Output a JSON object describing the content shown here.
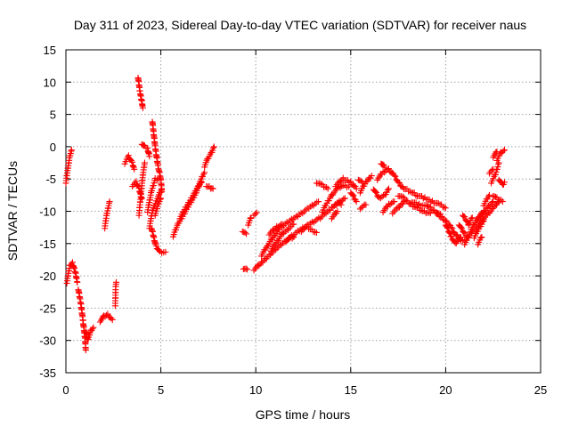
{
  "chart_data": {
    "type": "scatter",
    "title": "Day 311 of 2023, Sidereal Day-to-day VTEC variation (SDTVAR) for receiver naus",
    "xlabel": "GPS time / hours",
    "ylabel": "SDTVAR / TECUs",
    "xlim": [
      0,
      25
    ],
    "ylim": [
      -35,
      15
    ],
    "xticks": [
      0,
      5,
      10,
      15,
      20,
      25
    ],
    "yticks": [
      15,
      10,
      5,
      0,
      -5,
      -10,
      -15,
      -20,
      -25,
      -30,
      -35
    ],
    "grid": true,
    "marker": "+",
    "color": "#ff0000",
    "segments": [
      [
        [
          0.0,
          -5.5
        ],
        [
          0.1,
          -3.5
        ],
        [
          0.2,
          -1.5
        ],
        [
          0.3,
          -0.5
        ]
      ],
      [
        [
          0.05,
          -21
        ],
        [
          0.2,
          -18.5
        ],
        [
          0.35,
          -18
        ],
        [
          0.5,
          -19.5
        ],
        [
          0.6,
          -21
        ]
      ],
      [
        [
          0.65,
          -22
        ],
        [
          0.8,
          -24.5
        ],
        [
          0.9,
          -27
        ],
        [
          1.0,
          -29.5
        ],
        [
          1.05,
          -31.5
        ]
      ],
      [
        [
          1.05,
          -28.5
        ],
        [
          1.15,
          -30
        ],
        [
          1.3,
          -28.5
        ],
        [
          1.45,
          -28
        ]
      ],
      [
        [
          1.8,
          -27
        ],
        [
          2.0,
          -26.3
        ],
        [
          2.2,
          -26
        ],
        [
          2.45,
          -26.8
        ]
      ],
      [
        [
          2.6,
          -24.5
        ],
        [
          2.62,
          -21.8
        ],
        [
          2.65,
          -21
        ]
      ],
      [
        [
          2.05,
          -12.5
        ],
        [
          2.15,
          -10.5
        ],
        [
          2.3,
          -8.5
        ]
      ],
      [
        [
          3.1,
          -2.5
        ],
        [
          3.3,
          -1.5
        ],
        [
          3.5,
          -2.5
        ],
        [
          3.6,
          -3.5
        ]
      ],
      [
        [
          3.5,
          -6
        ],
        [
          3.7,
          -5.5
        ],
        [
          3.85,
          -6.5
        ],
        [
          4.0,
          -8
        ]
      ],
      [
        [
          3.8,
          10.8
        ],
        [
          3.9,
          8.5
        ],
        [
          4.0,
          7
        ],
        [
          4.05,
          6
        ]
      ],
      [
        [
          3.85,
          -10.5
        ],
        [
          3.95,
          -7.5
        ],
        [
          4.05,
          -4.5
        ],
        [
          4.15,
          -2.5
        ]
      ],
      [
        [
          4.0,
          0.5
        ],
        [
          4.15,
          0
        ],
        [
          4.3,
          -0.3
        ],
        [
          4.4,
          -1.5
        ]
      ],
      [
        [
          4.55,
          4
        ],
        [
          4.7,
          0
        ],
        [
          4.85,
          -3
        ],
        [
          5.0,
          -5
        ],
        [
          5.05,
          -7
        ]
      ],
      [
        [
          4.3,
          -10
        ],
        [
          4.5,
          -7
        ],
        [
          4.7,
          -5
        ],
        [
          4.9,
          -5
        ]
      ],
      [
        [
          4.4,
          -12.5
        ],
        [
          4.55,
          -10
        ],
        [
          4.75,
          -8.5
        ],
        [
          4.9,
          -7.5
        ],
        [
          5.05,
          -6.5
        ]
      ],
      [
        [
          4.5,
          -12.5
        ],
        [
          4.75,
          -15.5
        ],
        [
          4.95,
          -16.3
        ],
        [
          5.25,
          -16.3
        ]
      ],
      [
        [
          4.7,
          -10.5
        ],
        [
          4.85,
          -9
        ],
        [
          5.0,
          -8
        ]
      ],
      [
        [
          5.65,
          -13.8
        ],
        [
          5.9,
          -12
        ],
        [
          6.2,
          -10.5
        ],
        [
          6.5,
          -9
        ],
        [
          6.8,
          -7.5
        ],
        [
          7.0,
          -6
        ],
        [
          7.2,
          -4.5
        ],
        [
          7.3,
          -4
        ]
      ],
      [
        [
          6.0,
          -11
        ],
        [
          6.3,
          -9.5
        ],
        [
          6.6,
          -8
        ],
        [
          6.9,
          -6.5
        ],
        [
          7.15,
          -5.5
        ]
      ],
      [
        [
          7.3,
          -3
        ],
        [
          7.45,
          -2
        ],
        [
          7.65,
          -1
        ],
        [
          7.8,
          0
        ]
      ],
      [
        [
          7.4,
          -6
        ],
        [
          7.55,
          -6.3
        ],
        [
          7.75,
          -6.5
        ]
      ],
      [
        [
          9.3,
          -13
        ],
        [
          9.5,
          -13.5
        ]
      ],
      [
        [
          9.35,
          -18.8
        ],
        [
          9.55,
          -19
        ]
      ],
      [
        [
          9.6,
          -12
        ],
        [
          9.75,
          -11
        ]
      ],
      [
        [
          9.9,
          -10.5
        ],
        [
          10.05,
          -10.2
        ]
      ],
      [
        [
          9.9,
          -19
        ],
        [
          10.3,
          -18
        ],
        [
          10.7,
          -16.8
        ],
        [
          11.2,
          -15.5
        ],
        [
          11.8,
          -14
        ],
        [
          12.3,
          -13
        ],
        [
          12.8,
          -12
        ],
        [
          13.4,
          -11
        ],
        [
          14.0,
          -9.5
        ],
        [
          14.4,
          -8.5
        ],
        [
          14.7,
          -8
        ]
      ],
      [
        [
          10.3,
          -16.8
        ],
        [
          10.8,
          -14.5
        ],
        [
          11.3,
          -12.5
        ],
        [
          11.8,
          -11.5
        ],
        [
          12.3,
          -10.5
        ],
        [
          12.8,
          -9.5
        ],
        [
          13.3,
          -8.5
        ]
      ],
      [
        [
          10.7,
          -13.5
        ],
        [
          11.1,
          -12.5
        ],
        [
          11.4,
          -12
        ]
      ],
      [
        [
          10.8,
          -16
        ],
        [
          11.4,
          -13.5
        ],
        [
          12.0,
          -12
        ]
      ],
      [
        [
          11.6,
          -14.5
        ],
        [
          12.0,
          -14
        ]
      ],
      [
        [
          12.4,
          -13
        ],
        [
          12.7,
          -12.5
        ],
        [
          13.2,
          -13.3
        ]
      ],
      [
        [
          13.5,
          -10
        ],
        [
          13.8,
          -8.5
        ],
        [
          14.0,
          -7.5
        ],
        [
          14.3,
          -6.5
        ],
        [
          14.6,
          -6
        ],
        [
          14.9,
          -6.2
        ]
      ],
      [
        [
          13.2,
          -5.5
        ],
        [
          13.5,
          -6
        ],
        [
          13.8,
          -6.5
        ]
      ],
      [
        [
          14.3,
          -8.5
        ],
        [
          14.5,
          -9
        ]
      ],
      [
        [
          14.0,
          -11
        ],
        [
          14.3,
          -10
        ]
      ],
      [
        [
          14.2,
          -6
        ],
        [
          14.6,
          -5
        ],
        [
          15.0,
          -5.5
        ],
        [
          15.3,
          -6.5
        ]
      ],
      [
        [
          15.0,
          -7
        ],
        [
          15.3,
          -8.5
        ]
      ],
      [
        [
          15.4,
          -5
        ],
        [
          15.6,
          -5.5
        ]
      ],
      [
        [
          15.5,
          -7
        ],
        [
          15.8,
          -5.5
        ],
        [
          16.1,
          -4.5
        ]
      ],
      [
        [
          15.5,
          -9.5
        ],
        [
          15.8,
          -9
        ]
      ],
      [
        [
          16.2,
          -6.5
        ],
        [
          16.5,
          -8
        ],
        [
          16.8,
          -7.5
        ],
        [
          17.0,
          -6.5
        ]
      ],
      [
        [
          16.4,
          -5
        ],
        [
          16.7,
          -4
        ],
        [
          17.0,
          -3.5
        ],
        [
          17.3,
          -4.5
        ],
        [
          17.5,
          -5.5
        ],
        [
          17.8,
          -6.5
        ],
        [
          18.2,
          -7
        ],
        [
          18.5,
          -7.5
        ],
        [
          18.9,
          -8
        ],
        [
          19.3,
          -8.5
        ],
        [
          19.7,
          -9
        ],
        [
          20.0,
          -9.5
        ]
      ],
      [
        [
          16.6,
          -2.5
        ],
        [
          16.8,
          -3.2
        ]
      ],
      [
        [
          16.7,
          -10
        ],
        [
          17.0,
          -9
        ],
        [
          17.3,
          -8.5
        ]
      ],
      [
        [
          17.2,
          -10.2
        ],
        [
          17.5,
          -9.5
        ],
        [
          17.8,
          -8.5
        ]
      ],
      [
        [
          17.5,
          -7.5
        ],
        [
          17.8,
          -8
        ],
        [
          18.2,
          -9
        ],
        [
          18.5,
          -9.5
        ],
        [
          18.8,
          -10
        ],
        [
          19.2,
          -10.3
        ]
      ],
      [
        [
          18.2,
          -8.5
        ],
        [
          18.6,
          -9
        ],
        [
          19.0,
          -9.2
        ]
      ],
      [
        [
          19.0,
          -9
        ],
        [
          19.4,
          -10
        ],
        [
          19.8,
          -11
        ],
        [
          20.0,
          -11.5
        ],
        [
          20.3,
          -12.5
        ],
        [
          20.5,
          -13.5
        ],
        [
          20.8,
          -14.5
        ],
        [
          21.1,
          -14.5
        ]
      ],
      [
        [
          19.5,
          -10
        ],
        [
          19.8,
          -10.8
        ]
      ],
      [
        [
          20.0,
          -12
        ],
        [
          20.3,
          -14
        ],
        [
          20.5,
          -15
        ],
        [
          20.8,
          -14
        ]
      ],
      [
        [
          20.7,
          -12
        ],
        [
          21.0,
          -13.5
        ],
        [
          21.2,
          -14
        ]
      ],
      [
        [
          20.9,
          -10.5
        ],
        [
          21.0,
          -11
        ],
        [
          21.2,
          -12
        ]
      ],
      [
        [
          21.0,
          -15
        ],
        [
          21.3,
          -13.5
        ],
        [
          21.6,
          -12.5
        ],
        [
          21.9,
          -11.5
        ],
        [
          22.2,
          -10.5
        ],
        [
          22.5,
          -9.5
        ],
        [
          22.8,
          -8.5
        ]
      ],
      [
        [
          21.3,
          -13
        ],
        [
          21.6,
          -11.5
        ],
        [
          21.9,
          -10.5
        ],
        [
          22.2,
          -9.5
        ],
        [
          22.5,
          -8.5
        ]
      ],
      [
        [
          21.5,
          -14
        ],
        [
          21.8,
          -12.5
        ],
        [
          22.0,
          -11.5
        ]
      ],
      [
        [
          21.2,
          -12
        ],
        [
          21.4,
          -11
        ]
      ],
      [
        [
          21.7,
          -11
        ],
        [
          22.0,
          -10
        ]
      ],
      [
        [
          21.7,
          -15
        ],
        [
          21.9,
          -14
        ]
      ],
      [
        [
          22.0,
          -9
        ],
        [
          22.3,
          -7.5
        ]
      ],
      [
        [
          22.3,
          -4
        ],
        [
          22.5,
          -3.5
        ]
      ],
      [
        [
          22.4,
          -5.5
        ],
        [
          22.6,
          -4.5
        ],
        [
          22.8,
          -2.5
        ]
      ],
      [
        [
          22.7,
          -2
        ],
        [
          22.9,
          -1
        ],
        [
          23.1,
          -0.5
        ]
      ],
      [
        [
          22.5,
          -7.5
        ],
        [
          22.7,
          -8
        ],
        [
          23.0,
          -8.5
        ]
      ],
      [
        [
          22.8,
          -5
        ],
        [
          23.0,
          -6
        ],
        [
          23.1,
          -5.5
        ]
      ],
      [
        [
          22.5,
          -1.5
        ],
        [
          22.7,
          -0.8
        ]
      ]
    ]
  }
}
